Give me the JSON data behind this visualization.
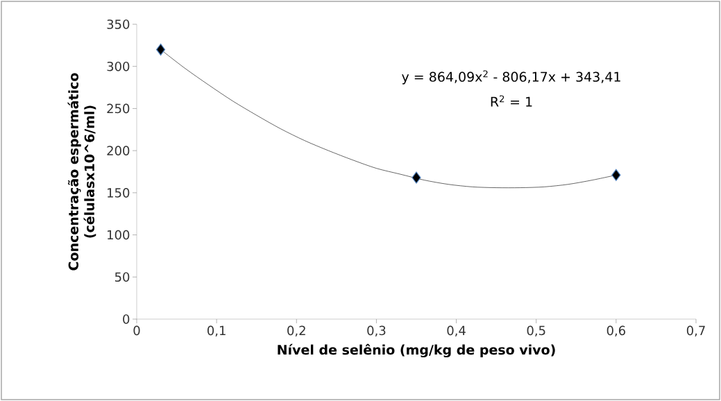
{
  "chart_data": {
    "type": "scatter",
    "xlabel": "Nível de selênio (mg/kg de peso vivo)",
    "ylabel": "Concentração espermático\n(célulasx10^6/ml)",
    "annotations": [
      "y = 864,09x$^{2}$ - 806,17x + 343,41",
      "R$^{2}$ = 1"
    ],
    "xlim": [
      0,
      0.7
    ],
    "ylim": [
      0,
      350
    ],
    "xticks": [
      0,
      {
        "value": 0.1,
        "label": "0,1"
      },
      {
        "value": 0.2,
        "label": "0,2"
      },
      {
        "value": 0.3,
        "label": "0,3"
      },
      {
        "value": 0.4,
        "label": "0,4"
      },
      {
        "value": 0.5,
        "label": "0,5"
      },
      {
        "value": 0.6,
        "label": "0,6"
      },
      {
        "value": 0.7,
        "label": "0,7"
      }
    ],
    "yticks": [
      0,
      50,
      100,
      150,
      200,
      250,
      300,
      350
    ],
    "marker": "diamond",
    "series": [
      {
        "color": "#000000",
        "x": [
          0.03,
          0.35,
          0.6
        ],
        "values": [
          320,
          168,
          171
        ]
      },
      {
        "type": "line",
        "color": "#000000",
        "marker": "none",
        "x": [
          0.03,
          0.06,
          0.09,
          0.12,
          0.15,
          0.18,
          0.21,
          0.24,
          0.27,
          0.3,
          0.33,
          0.36,
          0.39,
          0.42,
          0.45,
          0.48,
          0.51,
          0.54,
          0.57,
          0.6
        ],
        "values": [
          320,
          298,
          278,
          259,
          242,
          226,
          212,
          200,
          189,
          179,
          172,
          165,
          160,
          157,
          156,
          156,
          157,
          160,
          165,
          171
        ]
      }
    ]
  }
}
